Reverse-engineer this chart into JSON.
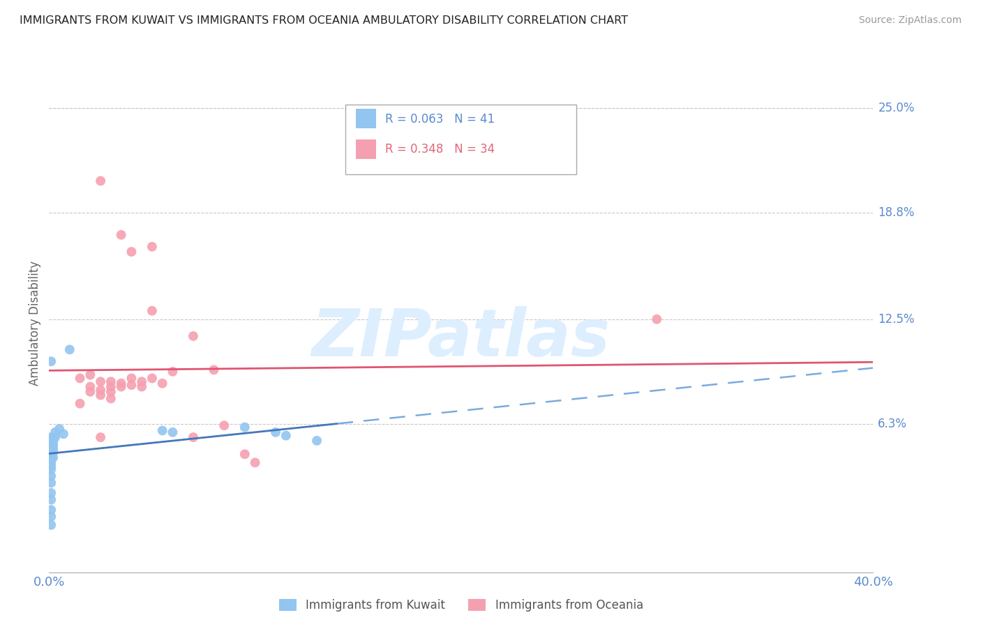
{
  "title": "IMMIGRANTS FROM KUWAIT VS IMMIGRANTS FROM OCEANIA AMBULATORY DISABILITY CORRELATION CHART",
  "source": "Source: ZipAtlas.com",
  "ylabel": "Ambulatory Disability",
  "xlim": [
    0.0,
    0.4
  ],
  "ylim": [
    -0.025,
    0.27
  ],
  "kuwait_R": 0.063,
  "kuwait_N": 41,
  "oceania_R": 0.348,
  "oceania_N": 34,
  "kuwait_color": "#92c5f0",
  "oceania_color": "#f5a0b0",
  "kuwait_scatter": [
    [
      0.001,
      0.055
    ],
    [
      0.001,
      0.053
    ],
    [
      0.001,
      0.052
    ],
    [
      0.001,
      0.051
    ],
    [
      0.001,
      0.05
    ],
    [
      0.001,
      0.049
    ],
    [
      0.001,
      0.048
    ],
    [
      0.001,
      0.047
    ],
    [
      0.001,
      0.046
    ],
    [
      0.001,
      0.045
    ],
    [
      0.001,
      0.044
    ],
    [
      0.001,
      0.043
    ],
    [
      0.001,
      0.042
    ],
    [
      0.001,
      0.04
    ],
    [
      0.001,
      0.038
    ],
    [
      0.001,
      0.036
    ],
    [
      0.001,
      0.032
    ],
    [
      0.001,
      0.028
    ],
    [
      0.001,
      0.022
    ],
    [
      0.001,
      0.018
    ],
    [
      0.001,
      0.012
    ],
    [
      0.001,
      0.008
    ],
    [
      0.001,
      0.003
    ],
    [
      0.002,
      0.055
    ],
    [
      0.002,
      0.052
    ],
    [
      0.002,
      0.05
    ],
    [
      0.002,
      0.048
    ],
    [
      0.002,
      0.046
    ],
    [
      0.002,
      0.043
    ],
    [
      0.003,
      0.058
    ],
    [
      0.003,
      0.055
    ],
    [
      0.005,
      0.06
    ],
    [
      0.007,
      0.057
    ],
    [
      0.01,
      0.107
    ],
    [
      0.055,
      0.059
    ],
    [
      0.06,
      0.058
    ],
    [
      0.095,
      0.061
    ],
    [
      0.11,
      0.058
    ],
    [
      0.115,
      0.056
    ],
    [
      0.13,
      0.053
    ],
    [
      0.001,
      0.1
    ]
  ],
  "oceania_scatter": [
    [
      0.015,
      0.09
    ],
    [
      0.015,
      0.075
    ],
    [
      0.02,
      0.092
    ],
    [
      0.02,
      0.085
    ],
    [
      0.02,
      0.082
    ],
    [
      0.025,
      0.088
    ],
    [
      0.025,
      0.083
    ],
    [
      0.025,
      0.08
    ],
    [
      0.03,
      0.088
    ],
    [
      0.03,
      0.085
    ],
    [
      0.03,
      0.082
    ],
    [
      0.03,
      0.078
    ],
    [
      0.035,
      0.087
    ],
    [
      0.035,
      0.085
    ],
    [
      0.04,
      0.09
    ],
    [
      0.04,
      0.086
    ],
    [
      0.045,
      0.088
    ],
    [
      0.045,
      0.085
    ],
    [
      0.05,
      0.09
    ],
    [
      0.055,
      0.087
    ],
    [
      0.06,
      0.094
    ],
    [
      0.07,
      0.115
    ],
    [
      0.08,
      0.095
    ],
    [
      0.085,
      0.062
    ],
    [
      0.025,
      0.207
    ],
    [
      0.035,
      0.175
    ],
    [
      0.04,
      0.165
    ],
    [
      0.05,
      0.13
    ],
    [
      0.095,
      0.045
    ],
    [
      0.1,
      0.04
    ],
    [
      0.025,
      0.055
    ],
    [
      0.07,
      0.055
    ],
    [
      0.295,
      0.125
    ],
    [
      0.05,
      0.168
    ]
  ],
  "background_color": "#ffffff",
  "grid_color": "#c8c8c8",
  "title_color": "#333333",
  "axis_label_color": "#5b8bd0",
  "watermark_color": "#ddeeff",
  "legend_r_color_kuwait": "#5b8bd0",
  "legend_r_color_oceania": "#e06878",
  "ytick_vals": [
    0.063,
    0.125,
    0.188,
    0.25
  ],
  "ytick_labels": [
    "6.3%",
    "12.5%",
    "18.8%",
    "25.0%"
  ]
}
